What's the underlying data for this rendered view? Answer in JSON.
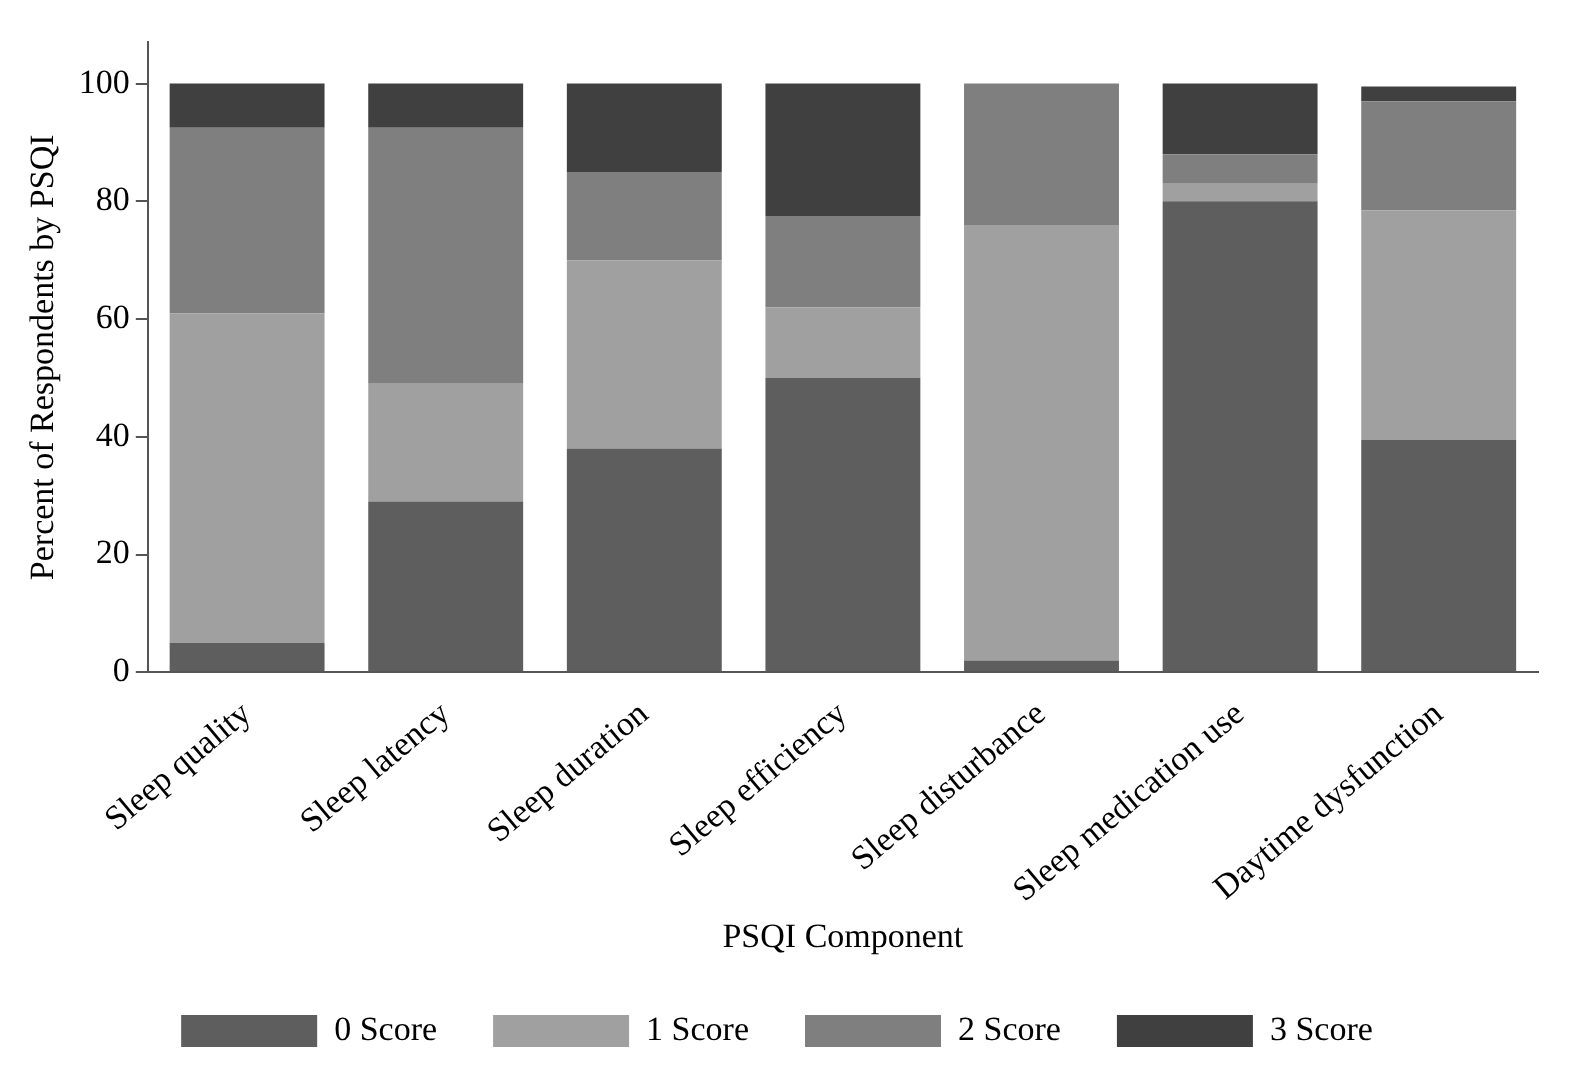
{
  "chart_data": {
    "type": "bar",
    "stacked": true,
    "xlabel": "PSQI Component",
    "ylabel": "Percent of Respondents by PSQI",
    "categories": [
      "Sleep quality",
      "Sleep latency",
      "Sleep duration",
      "Sleep efficiency",
      "Sleep disturbance",
      "Sleep medication use",
      "Daytime dysfunction"
    ],
    "series": [
      {
        "name": "0 Score",
        "color": "#5e5e5e",
        "values": [
          5,
          29,
          38,
          50,
          2,
          80,
          39.5
        ]
      },
      {
        "name": "1 Score",
        "color": "#a0a0a0",
        "values": [
          56,
          20,
          32,
          12,
          74,
          3,
          39
        ]
      },
      {
        "name": "2 Score",
        "color": "#7f7f7f",
        "values": [
          31.5,
          43.5,
          15,
          15.5,
          24,
          5,
          18.5
        ]
      },
      {
        "name": "3 Score",
        "color": "#404040",
        "values": [
          7.5,
          7.5,
          15,
          22.5,
          0,
          12,
          2.5
        ]
      }
    ],
    "ylim": [
      0,
      107
    ],
    "yticks": [
      0,
      20,
      40,
      60,
      80,
      100
    ],
    "grid": false,
    "legend": "bottom"
  }
}
